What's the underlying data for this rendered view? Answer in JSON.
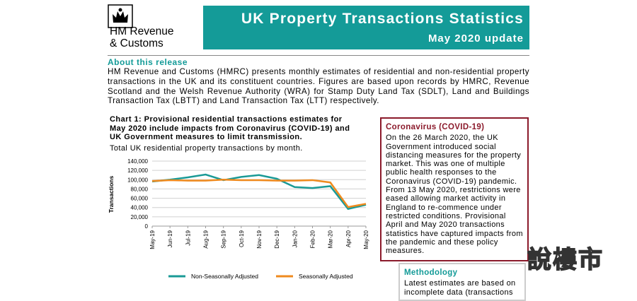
{
  "header": {
    "organization_line1": "HM Revenue",
    "organization_line2": "& Customs",
    "title": "UK Property Transactions Statistics",
    "subtitle": "May 2020 update"
  },
  "about": {
    "heading": "About this release",
    "text": "HM Revenue and Customs (HMRC) presents monthly estimates of residential and non-residential property transactions in the UK and its constituent countries. Figures are based upon records by HMRC, Revenue Scotland and the Welsh Revenue Authority (WRA) for Stamp Duty Land Tax (SDLT), Land and Buildings Transaction Tax (LBTT) and Land Transaction Tax (LTT) respectively."
  },
  "chart_data": {
    "type": "line",
    "title": "Chart 1: Provisional residential transactions estimates for May 2020 include impacts from Coronavirus (COVID-19) and UK Government measures to limit transmission.",
    "subtitle": "Total UK residential property transactions by month.",
    "y_label": "Transactions",
    "categories": [
      "May-19",
      "Jun-19",
      "Jul-19",
      "Aug-19",
      "Sep-19",
      "Oct-19",
      "Nov-19",
      "Dec-19",
      "Jan-20",
      "Feb-20",
      "Mar-20",
      "Apr-20",
      "May-20"
    ],
    "series": [
      {
        "name": "Non-Seasonally Adjusted",
        "color": "#1a9a96",
        "values": [
          96000,
          100000,
          105000,
          111000,
          99000,
          106000,
          110000,
          102000,
          84000,
          82000,
          86000,
          37000,
          46000
        ]
      },
      {
        "name": "Seasonally Adjusted",
        "color": "#ef8a1e",
        "values": [
          97000,
          99000,
          98000,
          98000,
          100000,
          99000,
          99000,
          98000,
          98000,
          99000,
          94000,
          41000,
          48000
        ]
      }
    ],
    "ylim": [
      0,
      140000
    ],
    "yticks": [
      0,
      {
        "value": 20000,
        "label": "20,000"
      },
      {
        "value": 40000,
        "label": "40,000"
      },
      {
        "value": 60000,
        "label": "60,000"
      },
      {
        "value": 80000,
        "label": "80,000"
      },
      {
        "value": 100000,
        "label": "100,000"
      },
      {
        "value": 120000,
        "label": "120,000"
      },
      {
        "value": 140000,
        "label": "140,000"
      }
    ],
    "grid": true,
    "legend": "bottom"
  },
  "sidebar": {
    "covid": {
      "heading": "Coronavirus (COVID-19)",
      "text": "On the 26 March 2020, the UK Government introduced social distancing measures for the property market. This was one of multiple public health responses to the Coronavirus (COVID-19) pandemic. From 13 May 2020, restrictions were eased allowing market activity in England to re-commence under restricted conditions. Provisional April and May 2020 transactions statistics have captured impacts from the pandemic and these policy measures."
    },
    "methodology": {
      "heading": "Methodology",
      "text": "Latest estimates are based on incomplete data (transactions"
    }
  },
  "watermark": "說樓市"
}
